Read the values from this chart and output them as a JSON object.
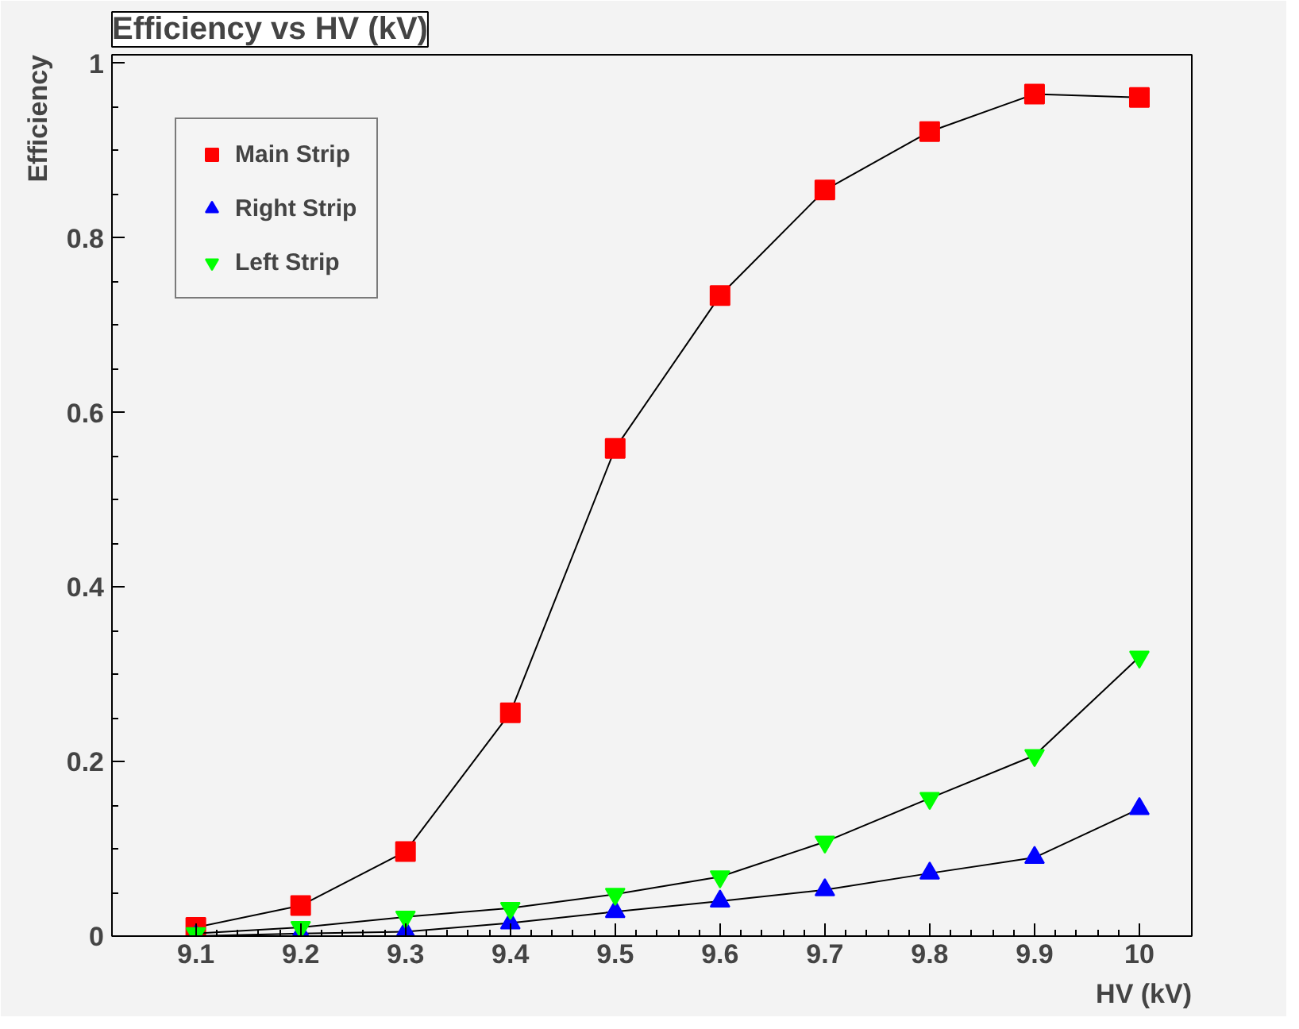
{
  "chart_data": {
    "type": "line",
    "title": "Efficiency vs HV (kV)",
    "xlabel": "HV (kV)",
    "ylabel": "Efficiency",
    "x": [
      9.1,
      9.2,
      9.3,
      9.4,
      9.5,
      9.6,
      9.7,
      9.8,
      9.9,
      10
    ],
    "series": [
      {
        "name": "Main Strip",
        "color": "#ff0000",
        "marker": "square",
        "values": [
          0.01,
          0.035,
          0.097,
          0.256,
          0.559,
          0.734,
          0.855,
          0.922,
          0.965,
          0.961
        ]
      },
      {
        "name": "Right Strip",
        "color": "#0000ff",
        "marker": "triangle",
        "values": [
          0.0,
          0.003,
          0.005,
          0.015,
          0.028,
          0.04,
          0.053,
          0.072,
          0.09,
          0.146
        ]
      },
      {
        "name": "Left Strip",
        "color": "#00ff00",
        "marker": "triangle_down",
        "values": [
          0.003,
          0.01,
          0.022,
          0.032,
          0.048,
          0.068,
          0.108,
          0.158,
          0.207,
          0.32
        ]
      }
    ],
    "xlim": [
      9.02,
      10.05
    ],
    "ylim": [
      0,
      1.01
    ],
    "xticks": [
      9.1,
      9.2,
      9.3,
      9.4,
      9.5,
      9.6,
      9.7,
      9.8,
      9.9,
      10
    ],
    "yticks": [
      0,
      0.2,
      0.4,
      0.6,
      0.8,
      1
    ],
    "grid": false,
    "legend": "top left",
    "line_style": "solid"
  }
}
